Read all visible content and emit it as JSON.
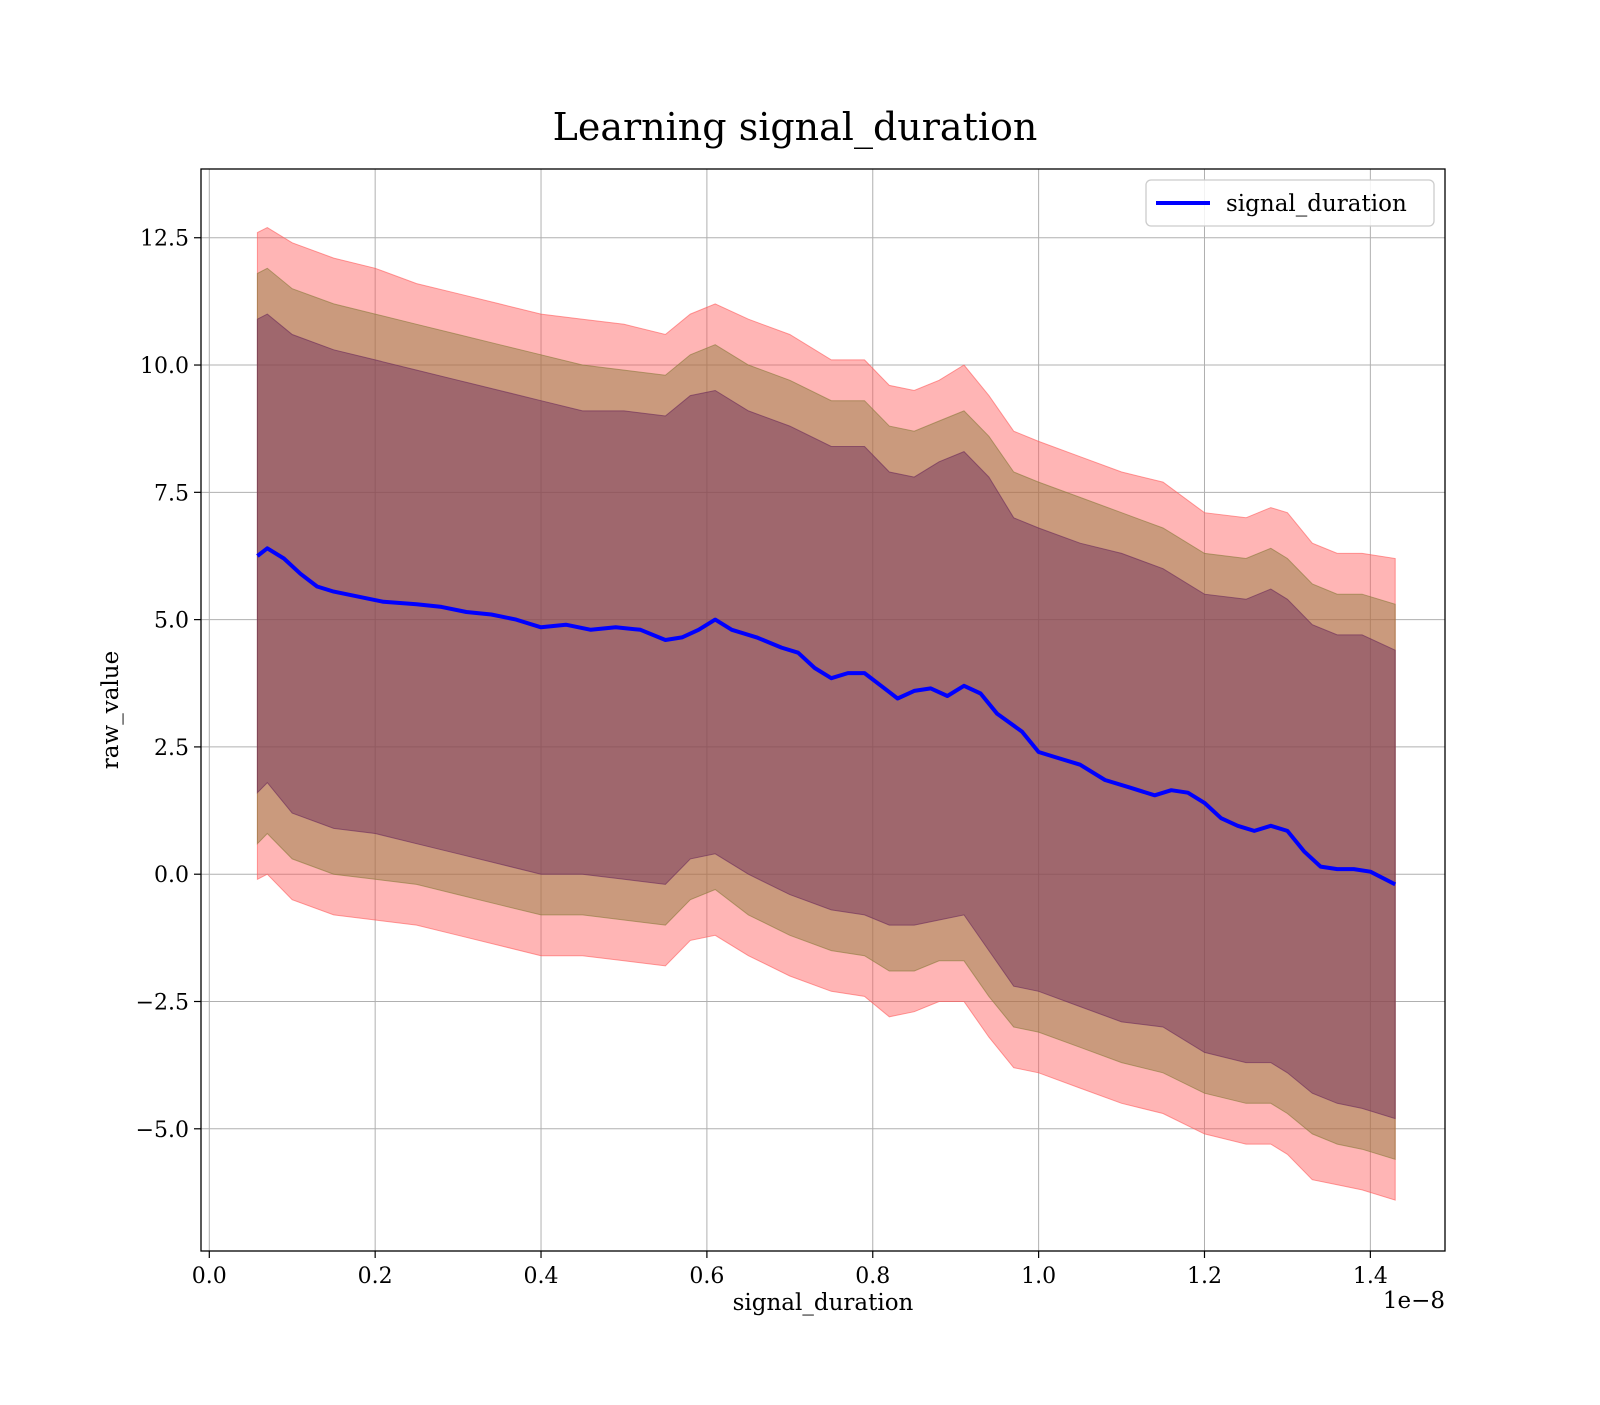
{
  "chart_data": {
    "type": "line",
    "title": "Learning signal_duration",
    "xlabel": "signal_duration",
    "ylabel": "raw_value",
    "x_offset_label": "1e−8",
    "xlim": [
      -1e-10,
      1.49e-08
    ],
    "ylim": [
      -7.4,
      13.85
    ],
    "x_ticks": [
      0.0,
      2e-09,
      4e-09,
      6e-09,
      8e-09,
      1e-08,
      1.2e-08,
      1.4e-08
    ],
    "x_tick_labels": [
      "0.0",
      "0.2",
      "0.4",
      "0.6",
      "0.8",
      "1.0",
      "1.2",
      "1.4"
    ],
    "y_ticks": [
      12.5,
      10.0,
      7.5,
      5.0,
      2.5,
      0.0,
      -2.5,
      -5.0
    ],
    "y_tick_labels": [
      "12.5",
      "10.0",
      "7.5",
      "5.0",
      "2.5",
      "0.0",
      "−2.5",
      "−5.0"
    ],
    "grid": true,
    "legend_position": "top-right",
    "series": [
      {
        "name": "signal_duration",
        "color": "#0000ff",
        "x": [
          5.8e-10,
          7e-10,
          9e-10,
          1.1e-09,
          1.3e-09,
          1.5e-09,
          1.8e-09,
          2.1e-09,
          2.5e-09,
          2.8e-09,
          3.1e-09,
          3.4e-09,
          3.7e-09,
          4e-09,
          4.3e-09,
          4.6e-09,
          4.9e-09,
          5.2e-09,
          5.5e-09,
          5.7e-09,
          5.9e-09,
          6.1e-09,
          6.3e-09,
          6.6e-09,
          6.9e-09,
          7.1e-09,
          7.3e-09,
          7.5e-09,
          7.7e-09,
          7.9e-09,
          8.1e-09,
          8.3e-09,
          8.5e-09,
          8.7e-09,
          8.9e-09,
          9.1e-09,
          9.3e-09,
          9.5e-09,
          9.8e-09,
          1e-08,
          1.02e-08,
          1.05e-08,
          1.08e-08,
          1.11e-08,
          1.14e-08,
          1.16e-08,
          1.18e-08,
          1.2e-08,
          1.22e-08,
          1.24e-08,
          1.26e-08,
          1.28e-08,
          1.3e-08,
          1.32e-08,
          1.34e-08,
          1.36e-08,
          1.38e-08,
          1.4e-08,
          1.43e-08
        ],
        "y": [
          6.25,
          6.4,
          6.2,
          5.9,
          5.65,
          5.55,
          5.45,
          5.35,
          5.3,
          5.25,
          5.15,
          5.1,
          5.0,
          4.85,
          4.9,
          4.8,
          4.85,
          4.8,
          4.6,
          4.65,
          4.8,
          5.0,
          4.8,
          4.65,
          4.45,
          4.35,
          4.05,
          3.85,
          3.95,
          3.95,
          3.7,
          3.45,
          3.6,
          3.65,
          3.5,
          3.7,
          3.55,
          3.15,
          2.8,
          2.4,
          2.3,
          2.15,
          1.85,
          1.7,
          1.55,
          1.65,
          1.6,
          1.4,
          1.1,
          0.95,
          0.85,
          0.95,
          0.85,
          0.45,
          0.15,
          0.1,
          0.1,
          0.05,
          -0.2
        ]
      }
    ],
    "bands": [
      {
        "color": "#ff5a5a",
        "opacity": 0.45,
        "x": [
          5.8e-10,
          7e-10,
          1e-09,
          1.5e-09,
          2e-09,
          2.5e-09,
          3e-09,
          3.5e-09,
          4e-09,
          4.5e-09,
          5e-09,
          5.5e-09,
          5.8e-09,
          6.1e-09,
          6.5e-09,
          7e-09,
          7.5e-09,
          7.9e-09,
          8.2e-09,
          8.5e-09,
          8.8e-09,
          9.1e-09,
          9.4e-09,
          9.7e-09,
          1e-08,
          1.05e-08,
          1.1e-08,
          1.15e-08,
          1.2e-08,
          1.25e-08,
          1.28e-08,
          1.3e-08,
          1.33e-08,
          1.36e-08,
          1.39e-08,
          1.43e-08
        ],
        "upper": [
          12.6,
          12.7,
          12.4,
          12.1,
          11.9,
          11.6,
          11.4,
          11.2,
          11.0,
          10.9,
          10.8,
          10.6,
          11.0,
          11.2,
          10.9,
          10.6,
          10.1,
          10.1,
          9.6,
          9.5,
          9.7,
          10.0,
          9.4,
          8.7,
          8.5,
          8.2,
          7.9,
          7.7,
          7.1,
          7.0,
          7.2,
          7.1,
          6.5,
          6.3,
          6.3,
          6.2
        ],
        "lower": [
          -0.1,
          0.0,
          -0.5,
          -0.8,
          -0.9,
          -1.0,
          -1.2,
          -1.4,
          -1.6,
          -1.6,
          -1.7,
          -1.8,
          -1.3,
          -1.2,
          -1.6,
          -2.0,
          -2.3,
          -2.4,
          -2.8,
          -2.7,
          -2.5,
          -2.5,
          -3.2,
          -3.8,
          -3.9,
          -4.2,
          -4.5,
          -4.7,
          -5.1,
          -5.3,
          -5.3,
          -5.5,
          -6.0,
          -6.1,
          -6.2,
          -6.4
        ]
      },
      {
        "color": "#8a7a3a",
        "opacity": 0.45,
        "x": [
          5.8e-10,
          7e-10,
          1e-09,
          1.5e-09,
          2e-09,
          2.5e-09,
          3e-09,
          3.5e-09,
          4e-09,
          4.5e-09,
          5e-09,
          5.5e-09,
          5.8e-09,
          6.1e-09,
          6.5e-09,
          7e-09,
          7.5e-09,
          7.9e-09,
          8.2e-09,
          8.5e-09,
          8.8e-09,
          9.1e-09,
          9.4e-09,
          9.7e-09,
          1e-08,
          1.05e-08,
          1.1e-08,
          1.15e-08,
          1.2e-08,
          1.25e-08,
          1.28e-08,
          1.3e-08,
          1.33e-08,
          1.36e-08,
          1.39e-08,
          1.43e-08
        ],
        "upper": [
          11.8,
          11.9,
          11.5,
          11.2,
          11.0,
          10.8,
          10.6,
          10.4,
          10.2,
          10.0,
          9.9,
          9.8,
          10.2,
          10.4,
          10.0,
          9.7,
          9.3,
          9.3,
          8.8,
          8.7,
          8.9,
          9.1,
          8.6,
          7.9,
          7.7,
          7.4,
          7.1,
          6.8,
          6.3,
          6.2,
          6.4,
          6.2,
          5.7,
          5.5,
          5.5,
          5.3
        ],
        "lower": [
          0.6,
          0.8,
          0.3,
          0.0,
          -0.1,
          -0.2,
          -0.4,
          -0.6,
          -0.8,
          -0.8,
          -0.9,
          -1.0,
          -0.5,
          -0.3,
          -0.8,
          -1.2,
          -1.5,
          -1.6,
          -1.9,
          -1.9,
          -1.7,
          -1.7,
          -2.4,
          -3.0,
          -3.1,
          -3.4,
          -3.7,
          -3.9,
          -4.3,
          -4.5,
          -4.5,
          -4.7,
          -5.1,
          -5.3,
          -5.4,
          -5.6
        ]
      },
      {
        "color": "#6a2a5a",
        "opacity": 0.45,
        "x": [
          5.8e-10,
          7e-10,
          1e-09,
          1.5e-09,
          2e-09,
          2.5e-09,
          3e-09,
          3.5e-09,
          4e-09,
          4.5e-09,
          5e-09,
          5.5e-09,
          5.8e-09,
          6.1e-09,
          6.5e-09,
          7e-09,
          7.5e-09,
          7.9e-09,
          8.2e-09,
          8.5e-09,
          8.8e-09,
          9.1e-09,
          9.4e-09,
          9.7e-09,
          1e-08,
          1.05e-08,
          1.1e-08,
          1.15e-08,
          1.2e-08,
          1.25e-08,
          1.28e-08,
          1.3e-08,
          1.33e-08,
          1.36e-08,
          1.39e-08,
          1.43e-08
        ],
        "upper": [
          10.9,
          11.0,
          10.6,
          10.3,
          10.1,
          9.9,
          9.7,
          9.5,
          9.3,
          9.1,
          9.1,
          9.0,
          9.4,
          9.5,
          9.1,
          8.8,
          8.4,
          8.4,
          7.9,
          7.8,
          8.1,
          8.3,
          7.8,
          7.0,
          6.8,
          6.5,
          6.3,
          6.0,
          5.5,
          5.4,
          5.6,
          5.4,
          4.9,
          4.7,
          4.7,
          4.4
        ],
        "lower": [
          1.6,
          1.8,
          1.2,
          0.9,
          0.8,
          0.6,
          0.4,
          0.2,
          0.0,
          0.0,
          -0.1,
          -0.2,
          0.3,
          0.4,
          0.0,
          -0.4,
          -0.7,
          -0.8,
          -1.0,
          -1.0,
          -0.9,
          -0.8,
          -1.5,
          -2.2,
          -2.3,
          -2.6,
          -2.9,
          -3.0,
          -3.5,
          -3.7,
          -3.7,
          -3.9,
          -4.3,
          -4.5,
          -4.6,
          -4.8
        ]
      }
    ]
  }
}
